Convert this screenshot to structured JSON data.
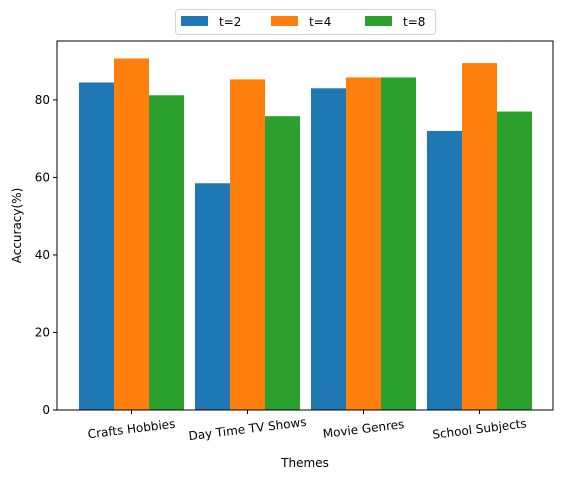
{
  "chart_data": {
    "type": "bar",
    "categories": [
      "Crafts Hobbies",
      "Day Time TV Shows",
      "Movie Genres",
      "School Subjects"
    ],
    "series": [
      {
        "name": "t=2",
        "values": [
          84.5,
          58.5,
          83.0,
          72.0
        ],
        "color": "#1f77b4"
      },
      {
        "name": "t=4",
        "values": [
          90.7,
          85.3,
          85.8,
          89.5
        ],
        "color": "#ff7f0e"
      },
      {
        "name": "t=8",
        "values": [
          81.2,
          75.8,
          85.8,
          77.0
        ],
        "color": "#2ca02c"
      }
    ],
    "xlabel": "Themes",
    "ylabel": "Accuracy(%)",
    "ylim": [
      0,
      95.2
    ],
    "yticks": [
      0,
      20,
      40,
      60,
      80
    ],
    "xtick_rotation": "slight counter-clockwise",
    "grid": false,
    "legend_position": "top-center, above plot"
  }
}
